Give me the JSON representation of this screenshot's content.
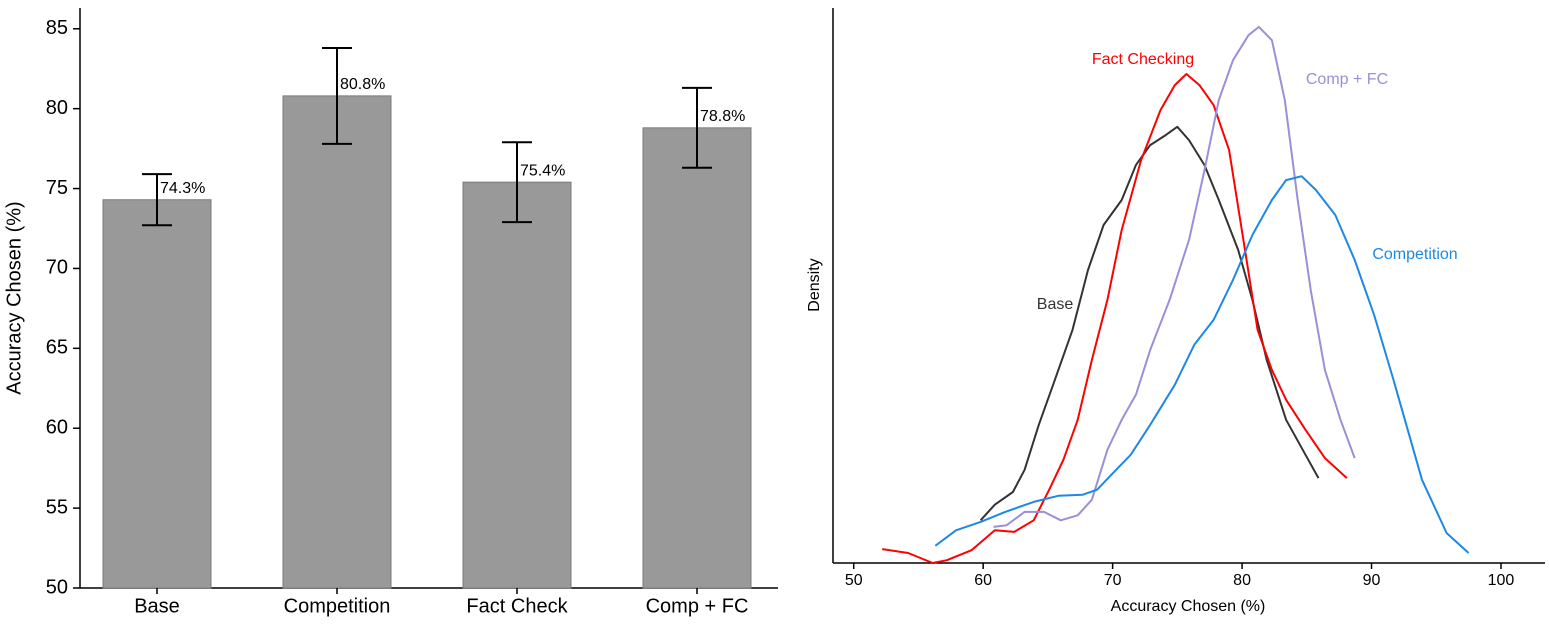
{
  "chart_data": [
    {
      "type": "bar",
      "y_label": "Accuracy Chosen (%)",
      "categories": [
        "Base",
        "Competition",
        "Fact Check",
        "Comp + FC"
      ],
      "values": [
        74.3,
        80.8,
        75.4,
        78.8
      ],
      "value_labels": [
        "74.3%",
        "80.8%",
        "75.4%",
        "78.8%"
      ],
      "errors": [
        1.6,
        3.0,
        2.5,
        2.5
      ],
      "color": "#999999",
      "ylim": [
        50,
        86.3
      ],
      "yticks": [
        50,
        55,
        60,
        65,
        70,
        75,
        80,
        85
      ]
    },
    {
      "type": "line",
      "x_label": "Accuracy Chosen (%)",
      "y_label": "Density",
      "xlim": [
        48.4,
        103.4
      ],
      "xticks": [
        50,
        60,
        70,
        80,
        90,
        100
      ],
      "ylim": [
        0,
        1
      ],
      "series": [
        {
          "name": "Base",
          "color": "#333333",
          "x": [
            59.8,
            60.9,
            62.3,
            63.2,
            64.3,
            65.4,
            66.9,
            68.1,
            69.3,
            70.7,
            71.8,
            72.9,
            74.1,
            75.0,
            75.9,
            77.1,
            78.2,
            79.7,
            80.8,
            81.9,
            83.4,
            84.9,
            85.9
          ],
          "values": [
            0.077,
            0.105,
            0.128,
            0.168,
            0.249,
            0.321,
            0.42,
            0.528,
            0.609,
            0.654,
            0.717,
            0.753,
            0.771,
            0.786,
            0.762,
            0.717,
            0.654,
            0.564,
            0.474,
            0.366,
            0.258,
            0.195,
            0.153
          ]
        },
        {
          "name": "Fact Checking",
          "color": "#ff0000",
          "x": [
            52.2,
            54.2,
            56.1,
            57.2,
            59.1,
            60.9,
            62.4,
            63.9,
            65.1,
            66.2,
            67.3,
            68.4,
            69.6,
            70.7,
            72.2,
            73.7,
            74.8,
            75.7,
            76.7,
            77.8,
            79.0,
            80.1,
            81.2,
            82.3,
            83.4,
            84.9,
            86.4,
            88.1
          ],
          "values": [
            0.025,
            0.018,
            0,
            0.005,
            0.023,
            0.059,
            0.056,
            0.077,
            0.132,
            0.186,
            0.258,
            0.366,
            0.474,
            0.6,
            0.726,
            0.816,
            0.861,
            0.881,
            0.861,
            0.825,
            0.744,
            0.582,
            0.42,
            0.348,
            0.294,
            0.24,
            0.189,
            0.153
          ]
        },
        {
          "name": "Comp + FC",
          "color": "#9a8fd8",
          "x": [
            60.8,
            61.8,
            63.2,
            64.7,
            66.0,
            67.3,
            68.4,
            69.6,
            70.7,
            71.8,
            72.9,
            74.4,
            75.9,
            77.1,
            78.2,
            79.3,
            80.5,
            81.3,
            82.3,
            83.3,
            84.3,
            85.3,
            86.4,
            87.6,
            88.7
          ],
          "values": [
            0.065,
            0.068,
            0.092,
            0.092,
            0.077,
            0.086,
            0.114,
            0.204,
            0.258,
            0.303,
            0.384,
            0.474,
            0.582,
            0.708,
            0.834,
            0.906,
            0.951,
            0.966,
            0.942,
            0.834,
            0.654,
            0.492,
            0.348,
            0.258,
            0.189
          ]
        },
        {
          "name": "Competition",
          "color": "#1e88e5",
          "x": [
            56.3,
            57.9,
            59.8,
            61.7,
            63.9,
            65.8,
            67.7,
            68.8,
            69.9,
            71.4,
            72.9,
            74.8,
            76.3,
            77.8,
            79.3,
            80.8,
            82.3,
            83.4,
            84.6,
            85.7,
            87.2,
            88.7,
            90.2,
            91.7,
            93.9,
            95.8,
            97.5
          ],
          "values": [
            0.031,
            0.059,
            0.074,
            0.092,
            0.11,
            0.121,
            0.123,
            0.132,
            0.159,
            0.195,
            0.249,
            0.321,
            0.393,
            0.438,
            0.51,
            0.591,
            0.654,
            0.69,
            0.697,
            0.672,
            0.627,
            0.546,
            0.447,
            0.33,
            0.15,
            0.054,
            0.018
          ]
        }
      ]
    }
  ]
}
